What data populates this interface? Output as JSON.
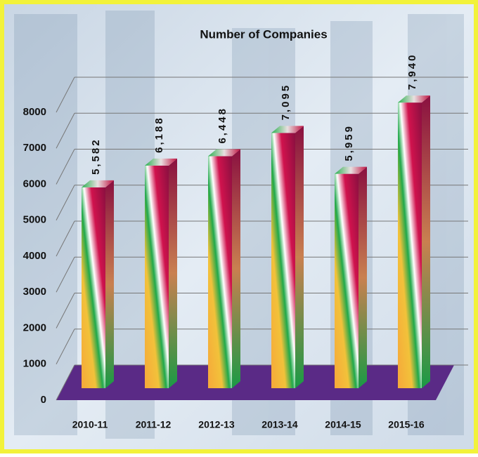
{
  "chart_data": {
    "type": "bar3d",
    "title": "Number of Companies",
    "categories": [
      "2010-11",
      "2011-12",
      "2012-13",
      "2013-14",
      "2014-15",
      "2015-16"
    ],
    "values": [
      5582,
      6188,
      6448,
      7095,
      5959,
      7940
    ],
    "value_labels": [
      "5,582",
      "6,188",
      "6,448",
      "7,095",
      "5,959",
      "7,940"
    ],
    "ylim": [
      0,
      8000
    ],
    "yticks": [
      0,
      1000,
      2000,
      3000,
      4000,
      5000,
      6000,
      7000,
      8000
    ],
    "grid": true,
    "floor_color": "#5a2a86"
  }
}
